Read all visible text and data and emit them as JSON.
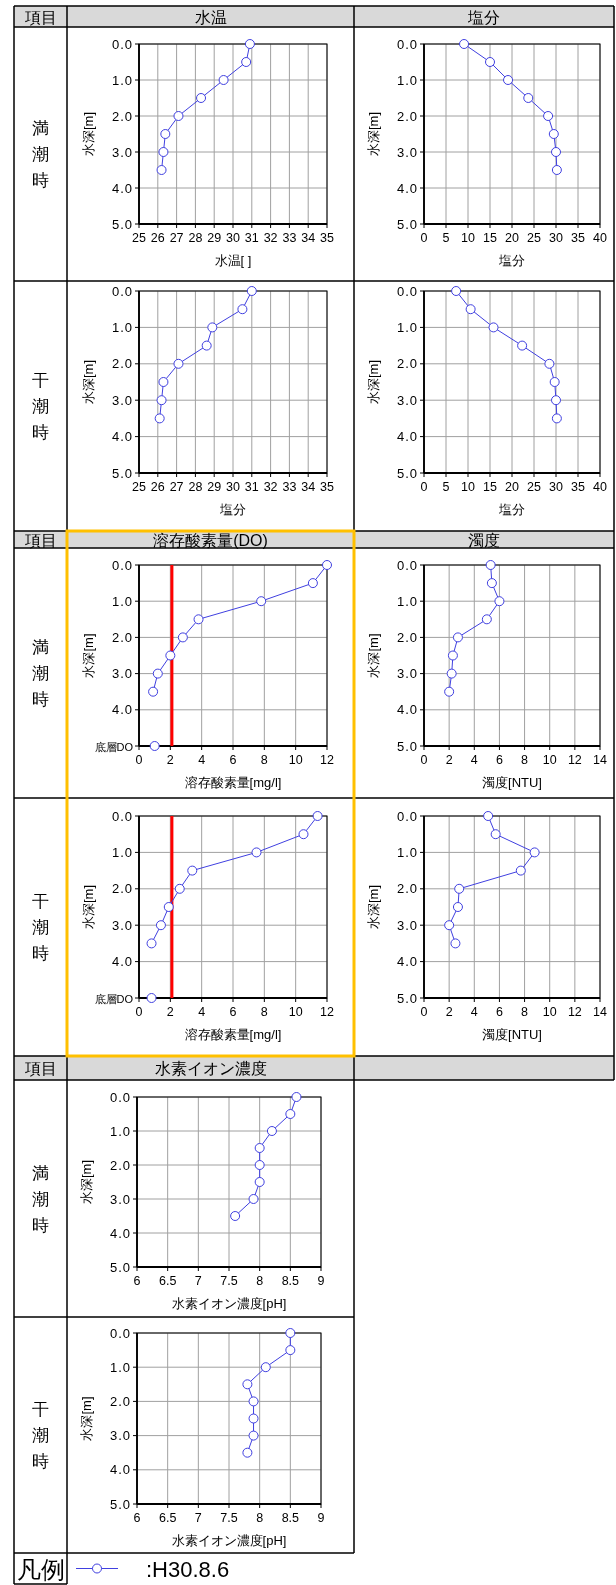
{
  "chart_data": [
    {
      "type": "line",
      "title": "水温",
      "xlabel": "水温[    ]",
      "ylabel": "水深[m]",
      "xlim": [
        25,
        35
      ],
      "xticks": [
        25,
        26,
        27,
        28,
        29,
        30,
        31,
        32,
        33,
        34,
        35
      ],
      "ylim": [
        5,
        0
      ],
      "yticks": [
        {
          "value": 0,
          "label": "0.0"
        },
        {
          "value": 1,
          "label": "1.0"
        },
        {
          "value": 2,
          "label": "2.0"
        },
        {
          "value": 3,
          "label": "3.0"
        },
        {
          "value": 4,
          "label": "4.0"
        },
        {
          "value": 5,
          "label": "5.0"
        }
      ],
      "grid": true,
      "marker": "circle",
      "series": [
        {
          "color": "#4040e0",
          "x": [
            30.9,
            30.7,
            29.5,
            28.3,
            27.1,
            26.4,
            26.3,
            26.2
          ],
          "values": [
            0,
            0.5,
            1,
            1.5,
            2,
            2.5,
            3,
            3.5
          ]
        }
      ]
    },
    {
      "type": "line",
      "title": "塩分",
      "xlabel": "塩分",
      "ylabel": "水深[m]",
      "xlim": [
        0,
        40
      ],
      "xticks": [
        0,
        5,
        10,
        15,
        20,
        25,
        30,
        35,
        40
      ],
      "ylim": [
        5,
        0
      ],
      "yticks": [
        {
          "value": 0,
          "label": "0.0"
        },
        {
          "value": 1,
          "label": "1.0"
        },
        {
          "value": 2,
          "label": "2.0"
        },
        {
          "value": 3,
          "label": "3.0"
        },
        {
          "value": 4,
          "label": "4.0"
        },
        {
          "value": 5,
          "label": "5.0"
        }
      ],
      "grid": true,
      "marker": "circle",
      "series": [
        {
          "color": "#4040e0",
          "x": [
            9.1,
            15.0,
            19.1,
            23.7,
            28.2,
            29.5,
            30.0,
            30.2
          ],
          "values": [
            0,
            0.5,
            1,
            1.5,
            2,
            2.5,
            3,
            3.5
          ]
        }
      ]
    },
    {
      "type": "line",
      "xlabel": "塩分",
      "ylabel": "水深[m]",
      "xlim": [
        25,
        35
      ],
      "xticks": [
        25,
        26,
        27,
        28,
        29,
        30,
        31,
        32,
        33,
        34,
        35
      ],
      "ylim": [
        5,
        0
      ],
      "yticks": [
        {
          "value": 0,
          "label": "0.0"
        },
        {
          "value": 1,
          "label": "1.0"
        },
        {
          "value": 2,
          "label": "2.0"
        },
        {
          "value": 3,
          "label": "3.0"
        },
        {
          "value": 4,
          "label": "4.0"
        },
        {
          "value": 5,
          "label": "5.0"
        }
      ],
      "grid": true,
      "marker": "circle",
      "series": [
        {
          "color": "#4040e0",
          "x": [
            31.0,
            30.5,
            28.9,
            28.6,
            27.1,
            26.3,
            26.2,
            26.1
          ],
          "values": [
            0,
            0.5,
            1,
            1.5,
            2,
            2.5,
            3,
            3.5
          ]
        }
      ]
    },
    {
      "type": "line",
      "xlabel": "塩分",
      "ylabel": "水深[m]",
      "xlim": [
        0,
        40
      ],
      "xticks": [
        0,
        5,
        10,
        15,
        20,
        25,
        30,
        35,
        40
      ],
      "ylim": [
        5,
        0
      ],
      "yticks": [
        {
          "value": 0,
          "label": "0.0"
        },
        {
          "value": 1,
          "label": "1.0"
        },
        {
          "value": 2,
          "label": "2.0"
        },
        {
          "value": 3,
          "label": "3.0"
        },
        {
          "value": 4,
          "label": "4.0"
        },
        {
          "value": 5,
          "label": "5.0"
        }
      ],
      "grid": true,
      "marker": "circle",
      "series": [
        {
          "color": "#4040e0",
          "x": [
            7.3,
            10.6,
            15.8,
            22.3,
            28.5,
            29.7,
            30.0,
            30.2
          ],
          "values": [
            0,
            0.5,
            1,
            1.5,
            2,
            2.5,
            3,
            3.5
          ]
        }
      ]
    },
    {
      "type": "line",
      "title": "溶存酸素量(DO)",
      "xlabel": "溶存酸素量[mg/l]",
      "ylabel": "水深[m]",
      "xlim": [
        0,
        12
      ],
      "xticks": [
        0,
        2,
        4,
        6,
        8,
        10,
        12
      ],
      "ylim": [
        5,
        0
      ],
      "yticks": [
        {
          "value": 0,
          "label": "0.0"
        },
        {
          "value": 1,
          "label": "1.0"
        },
        {
          "value": 2,
          "label": "2.0"
        },
        {
          "value": 3,
          "label": "3.0"
        },
        {
          "value": 4,
          "label": "4.0"
        },
        {
          "value": 5,
          "label": "底層DO"
        }
      ],
      "grid": true,
      "marker": "circle",
      "ref_lines": [
        {
          "axis": "x",
          "value": 2.1,
          "color": "#ff0000"
        }
      ],
      "series": [
        {
          "color": "#4040e0",
          "x": [
            12.0,
            11.1,
            7.8,
            3.8,
            2.8,
            2.0,
            1.2,
            0.9
          ],
          "values": [
            0,
            0.5,
            1,
            1.5,
            2,
            2.5,
            3,
            3.5
          ]
        },
        {
          "type": "scatter",
          "color": "#4040e0",
          "x": [
            1.0
          ],
          "values": [
            5
          ]
        }
      ]
    },
    {
      "type": "line",
      "title": "濁度",
      "xlabel": "濁度[NTU]",
      "ylabel": "水深[m]",
      "xlim": [
        0,
        14
      ],
      "xticks": [
        0,
        2,
        4,
        6,
        8,
        10,
        12,
        14
      ],
      "ylim": [
        5,
        0
      ],
      "yticks": [
        {
          "value": 0,
          "label": "0.0"
        },
        {
          "value": 1,
          "label": "1.0"
        },
        {
          "value": 2,
          "label": "2.0"
        },
        {
          "value": 3,
          "label": "3.0"
        },
        {
          "value": 4,
          "label": "4.0"
        },
        {
          "value": 5,
          "label": "5.0"
        }
      ],
      "grid": true,
      "marker": "circle",
      "series": [
        {
          "color": "#4040e0",
          "x": [
            5.3,
            5.4,
            6.0,
            5.0,
            2.7,
            2.3,
            2.2,
            2.0
          ],
          "values": [
            0,
            0.5,
            1,
            1.5,
            2,
            2.5,
            3,
            3.5
          ]
        }
      ]
    },
    {
      "type": "line",
      "xlabel": "溶存酸素量[mg/l]",
      "ylabel": "水深[m]",
      "xlim": [
        0,
        12
      ],
      "xticks": [
        0,
        2,
        4,
        6,
        8,
        10,
        12
      ],
      "ylim": [
        5,
        0
      ],
      "yticks": [
        {
          "value": 0,
          "label": "0.0"
        },
        {
          "value": 1,
          "label": "1.0"
        },
        {
          "value": 2,
          "label": "2.0"
        },
        {
          "value": 3,
          "label": "3.0"
        },
        {
          "value": 4,
          "label": "4.0"
        },
        {
          "value": 5,
          "label": "底層DO"
        }
      ],
      "grid": true,
      "marker": "circle",
      "ref_lines": [
        {
          "axis": "x",
          "value": 2.1,
          "color": "#ff0000"
        }
      ],
      "series": [
        {
          "color": "#4040e0",
          "x": [
            11.4,
            10.5,
            7.5,
            3.4,
            2.6,
            1.9,
            1.4,
            0.8
          ],
          "values": [
            0,
            0.5,
            1,
            1.5,
            2,
            2.5,
            3,
            3.5
          ]
        },
        {
          "type": "scatter",
          "color": "#4040e0",
          "x": [
            0.8
          ],
          "values": [
            5
          ]
        }
      ]
    },
    {
      "type": "line",
      "xlabel": "濁度[NTU]",
      "ylabel": "水深[m]",
      "xlim": [
        0,
        14
      ],
      "xticks": [
        0,
        2,
        4,
        6,
        8,
        10,
        12,
        14
      ],
      "ylim": [
        5,
        0
      ],
      "yticks": [
        {
          "value": 0,
          "label": "0.0"
        },
        {
          "value": 1,
          "label": "1.0"
        },
        {
          "value": 2,
          "label": "2.0"
        },
        {
          "value": 3,
          "label": "3.0"
        },
        {
          "value": 4,
          "label": "4.0"
        },
        {
          "value": 5,
          "label": "5.0"
        }
      ],
      "grid": true,
      "marker": "circle",
      "series": [
        {
          "color": "#4040e0",
          "x": [
            5.1,
            5.7,
            8.8,
            7.7,
            2.8,
            2.7,
            2.0,
            2.5
          ],
          "values": [
            0,
            0.5,
            1,
            1.5,
            2,
            2.5,
            3,
            3.5
          ]
        }
      ]
    },
    {
      "type": "line",
      "title": "水素イオン濃度",
      "xlabel": "水素イオン濃度[pH]",
      "ylabel": "水深[m]",
      "xlim": [
        6,
        9
      ],
      "xticks": [
        6,
        6.5,
        7,
        7.5,
        8,
        8.5,
        9
      ],
      "ylim": [
        5,
        0
      ],
      "yticks": [
        {
          "value": 0,
          "label": "0.0"
        },
        {
          "value": 1,
          "label": "1.0"
        },
        {
          "value": 2,
          "label": "2.0"
        },
        {
          "value": 3,
          "label": "3.0"
        },
        {
          "value": 4,
          "label": "4.0"
        },
        {
          "value": 5,
          "label": "5.0"
        }
      ],
      "grid": true,
      "marker": "circle",
      "series": [
        {
          "color": "#4040e0",
          "x": [
            8.6,
            8.5,
            8.2,
            8.0,
            8.0,
            8.0,
            7.9,
            7.6
          ],
          "values": [
            0,
            0.5,
            1,
            1.5,
            2,
            2.5,
            3,
            3.5
          ]
        }
      ]
    },
    {
      "type": "line",
      "xlabel": "水素イオン濃度[pH]",
      "ylabel": "水深[m]",
      "xlim": [
        6,
        9
      ],
      "xticks": [
        6,
        6.5,
        7,
        7.5,
        8,
        8.5,
        9
      ],
      "ylim": [
        5,
        0
      ],
      "yticks": [
        {
          "value": 0,
          "label": "0.0"
        },
        {
          "value": 1,
          "label": "1.0"
        },
        {
          "value": 2,
          "label": "2.0"
        },
        {
          "value": 3,
          "label": "3.0"
        },
        {
          "value": 4,
          "label": "4.0"
        },
        {
          "value": 5,
          "label": "5.0"
        }
      ],
      "grid": true,
      "marker": "circle",
      "legend": "bottom",
      "series": [
        {
          "name": ":H30.8.6",
          "color": "#4040e0",
          "x": [
            8.5,
            8.5,
            8.1,
            7.8,
            7.9,
            7.9,
            7.9,
            7.8
          ],
          "values": [
            0,
            0.5,
            1,
            1.5,
            2,
            2.5,
            3,
            3.5
          ]
        }
      ]
    },
    {
      "type": "other",
      "annotations": [
        "項目",
        "満潮時",
        "干潮時",
        "項目",
        "満潮時",
        "干潮時",
        "項目",
        "満潮時",
        "干潮時",
        "凡例"
      ]
    }
  ]
}
